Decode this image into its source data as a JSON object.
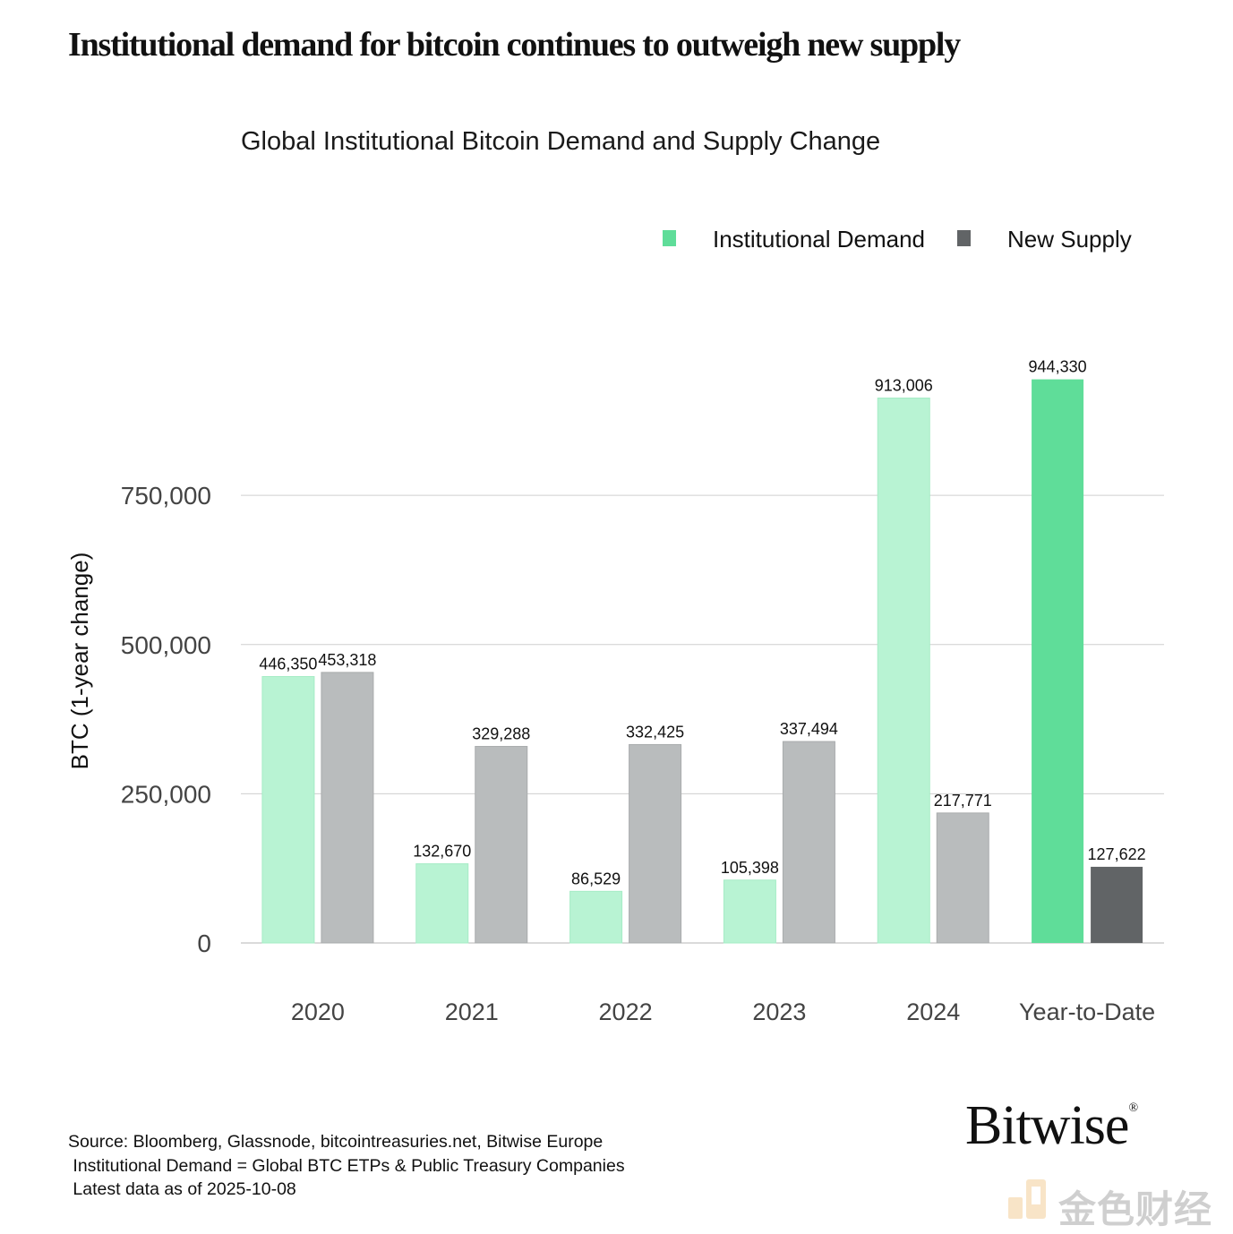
{
  "headline": "Institutional demand for bitcoin continues to outweigh new supply",
  "brand": {
    "name": "Bitwise",
    "mark": "®",
    "watermark_text": "金色财经"
  },
  "source_lines": [
    "Source: Bloomberg, Glassnode, bitcointreasuries.net, Bitwise Europe",
    " Institutional Demand = Global BTC ETPs & Public Treasury Companies",
    " Latest data as of 2025-10-08"
  ],
  "chart_data": {
    "type": "bar",
    "title": "Global Institutional Bitcoin Demand and Supply Change",
    "xlabel": "",
    "ylabel": "BTC (1-year change)",
    "ylim": [
      0,
      1000000
    ],
    "yticks": [
      0,
      250000,
      500000,
      750000
    ],
    "ytick_labels": [
      "0",
      "250,000",
      "500,000",
      "750,000"
    ],
    "grid": true,
    "legend_position": "top-right",
    "categories": [
      "2020",
      "2021",
      "2022",
      "2023",
      "2024",
      "Year-to-Date"
    ],
    "series": [
      {
        "name": "Institutional Demand",
        "color": "#5fdd99",
        "faded_color": "#b8f3d3",
        "values": [
          446350,
          132670,
          86529,
          105398,
          913006,
          944330
        ],
        "labels": [
          "446,350",
          "132,670",
          "86,529",
          "105,398",
          "913,006",
          "944,330"
        ]
      },
      {
        "name": "New Supply",
        "color": "#616466",
        "faded_color": "#b9bcbd",
        "values": [
          453318,
          329288,
          332425,
          337494,
          217771,
          127622
        ],
        "labels": [
          "453,318",
          "329,288",
          "332,425",
          "337,494",
          "217,771",
          "127,622"
        ]
      }
    ],
    "highlighted_category": "Year-to-Date"
  }
}
